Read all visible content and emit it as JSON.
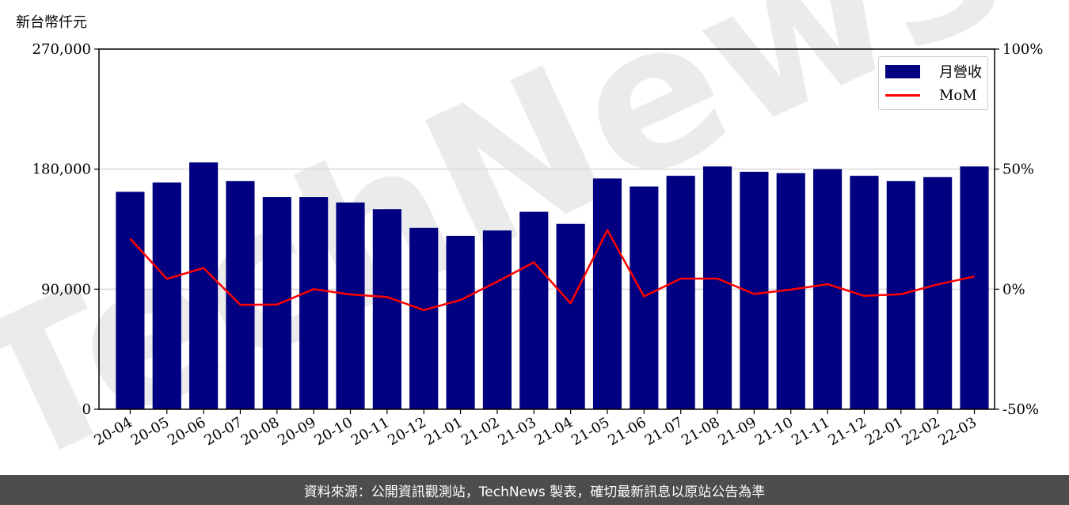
{
  "header": {
    "unit_label": "新台幣仟元"
  },
  "footer": {
    "text": "資料來源：公開資訊觀測站，TechNews 製表，確切最新訊息以原站公告為準"
  },
  "watermark": {
    "text": "TechNews"
  },
  "colors": {
    "bar": "#000080",
    "line": "#ff0000",
    "grid": "#d9d9d9",
    "footer_bg": "#4d4d4d"
  },
  "chart_data": {
    "type": "bar",
    "categories": [
      "20-04",
      "20-05",
      "20-06",
      "20-07",
      "20-08",
      "20-09",
      "20-10",
      "20-11",
      "20-12",
      "21-01",
      "21-02",
      "21-03",
      "21-04",
      "21-05",
      "21-06",
      "21-07",
      "21-08",
      "21-09",
      "21-10",
      "21-11",
      "21-12",
      "22-01",
      "22-02",
      "22-03"
    ],
    "series": [
      {
        "name": "月營收",
        "axis": "left",
        "type": "bar",
        "values": [
          163000,
          170000,
          185000,
          171000,
          159000,
          159000,
          155000,
          150000,
          136000,
          130000,
          134000,
          148000,
          139000,
          173000,
          167000,
          175000,
          182000,
          178000,
          177000,
          180000,
          175000,
          171000,
          174000,
          182000
        ]
      },
      {
        "name": "MoM",
        "axis": "right",
        "type": "line",
        "values": [
          21.0,
          4.3,
          8.8,
          -6.5,
          -6.4,
          0.0,
          -2.2,
          -3.3,
          -8.7,
          -4.5,
          3.1,
          11.2,
          -5.9,
          24.6,
          -3.0,
          4.4,
          4.4,
          -2.0,
          -0.2,
          2.1,
          -2.8,
          -2.1,
          2.0,
          5.3
        ]
      }
    ],
    "y_left": {
      "lim": [
        0,
        270000
      ],
      "ticks": [
        0,
        90000,
        180000,
        270000
      ],
      "tick_labels": [
        "0",
        "90,000",
        "180,000",
        "270,000"
      ]
    },
    "y_right": {
      "lim": [
        -50,
        100
      ],
      "ticks": [
        -50,
        0,
        50,
        100
      ],
      "tick_labels": [
        "-50%",
        "0%",
        "50%",
        "100%"
      ]
    },
    "grid": "horizontal",
    "legend_position": "top-right"
  }
}
